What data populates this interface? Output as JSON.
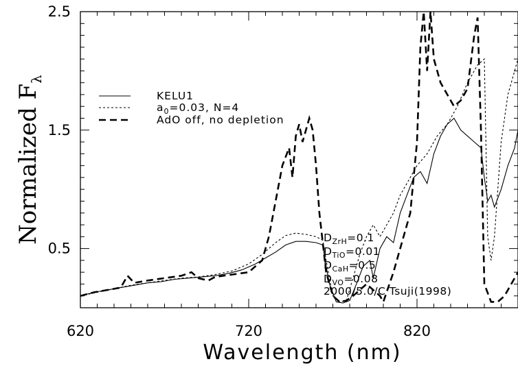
{
  "chart_data": {
    "type": "line",
    "title": "",
    "xlabel": "Wavelength  (nm)",
    "ylabel_main": "Normalized F",
    "ylabel_sub": "λ",
    "xlim": [
      620,
      880
    ],
    "ylim": [
      0,
      2.5
    ],
    "x_ticks": [
      620,
      720,
      820
    ],
    "y_ticks": [
      0.5,
      1.5,
      2.5
    ],
    "x_tick_labels": [
      "620",
      "720",
      "820"
    ],
    "y_tick_labels": [
      "0.5",
      "1.5",
      "2.5"
    ],
    "grid": false,
    "legend_position": "upper-left",
    "series": [
      {
        "name": "KELU1",
        "line_style": "solid",
        "points": [
          [
            620,
            0.1
          ],
          [
            628,
            0.13
          ],
          [
            636,
            0.15
          ],
          [
            644,
            0.17
          ],
          [
            652,
            0.19
          ],
          [
            660,
            0.21
          ],
          [
            668,
            0.22
          ],
          [
            676,
            0.24
          ],
          [
            684,
            0.25
          ],
          [
            692,
            0.26
          ],
          [
            700,
            0.27
          ],
          [
            708,
            0.29
          ],
          [
            716,
            0.32
          ],
          [
            724,
            0.37
          ],
          [
            730,
            0.42
          ],
          [
            736,
            0.47
          ],
          [
            742,
            0.53
          ],
          [
            748,
            0.56
          ],
          [
            754,
            0.56
          ],
          [
            760,
            0.55
          ],
          [
            764,
            0.53
          ],
          [
            766,
            0.35
          ],
          [
            768,
            0.2
          ],
          [
            772,
            0.05
          ],
          [
            776,
            0.04
          ],
          [
            780,
            0.06
          ],
          [
            784,
            0.2
          ],
          [
            788,
            0.35
          ],
          [
            792,
            0.4
          ],
          [
            794,
            0.25
          ],
          [
            798,
            0.5
          ],
          [
            802,
            0.6
          ],
          [
            806,
            0.55
          ],
          [
            810,
            0.8
          ],
          [
            814,
            0.95
          ],
          [
            818,
            1.1
          ],
          [
            822,
            1.15
          ],
          [
            826,
            1.05
          ],
          [
            830,
            1.3
          ],
          [
            834,
            1.45
          ],
          [
            838,
            1.55
          ],
          [
            842,
            1.6
          ],
          [
            846,
            1.5
          ],
          [
            850,
            1.45
          ],
          [
            854,
            1.4
          ],
          [
            858,
            1.35
          ],
          [
            860,
            1.1
          ],
          [
            862,
            0.9
          ],
          [
            864,
            0.95
          ],
          [
            866,
            0.85
          ],
          [
            870,
            1.0
          ],
          [
            874,
            1.2
          ],
          [
            878,
            1.35
          ],
          [
            880,
            1.5
          ]
        ]
      },
      {
        "name": "a0=0.03, N=4",
        "legend_label": "a",
        "legend_label_sub": "0",
        "legend_label_rest": "=0.03,  N=4",
        "line_style": "dotted",
        "points": [
          [
            620,
            0.1
          ],
          [
            630,
            0.13
          ],
          [
            640,
            0.16
          ],
          [
            650,
            0.19
          ],
          [
            660,
            0.21
          ],
          [
            670,
            0.23
          ],
          [
            680,
            0.25
          ],
          [
            690,
            0.26
          ],
          [
            700,
            0.28
          ],
          [
            710,
            0.31
          ],
          [
            720,
            0.37
          ],
          [
            728,
            0.45
          ],
          [
            736,
            0.55
          ],
          [
            742,
            0.61
          ],
          [
            748,
            0.63
          ],
          [
            754,
            0.62
          ],
          [
            760,
            0.6
          ],
          [
            764,
            0.57
          ],
          [
            766,
            0.4
          ],
          [
            770,
            0.1
          ],
          [
            774,
            0.05
          ],
          [
            778,
            0.06
          ],
          [
            782,
            0.25
          ],
          [
            786,
            0.45
          ],
          [
            790,
            0.6
          ],
          [
            794,
            0.7
          ],
          [
            798,
            0.6
          ],
          [
            802,
            0.7
          ],
          [
            806,
            0.8
          ],
          [
            810,
            0.95
          ],
          [
            816,
            1.1
          ],
          [
            820,
            1.2
          ],
          [
            826,
            1.3
          ],
          [
            832,
            1.45
          ],
          [
            838,
            1.55
          ],
          [
            844,
            1.7
          ],
          [
            850,
            1.9
          ],
          [
            856,
            2.05
          ],
          [
            860,
            2.1
          ],
          [
            862,
            0.6
          ],
          [
            864,
            0.4
          ],
          [
            866,
            0.6
          ],
          [
            870,
            1.4
          ],
          [
            874,
            1.8
          ],
          [
            878,
            2.0
          ],
          [
            880,
            2.1
          ]
        ]
      },
      {
        "name": "AdO off, no depletion",
        "line_style": "dashed",
        "points": [
          [
            620,
            0.1
          ],
          [
            628,
            0.13
          ],
          [
            636,
            0.15
          ],
          [
            644,
            0.17
          ],
          [
            648,
            0.27
          ],
          [
            652,
            0.21
          ],
          [
            660,
            0.23
          ],
          [
            670,
            0.25
          ],
          [
            680,
            0.27
          ],
          [
            686,
            0.3
          ],
          [
            690,
            0.25
          ],
          [
            696,
            0.23
          ],
          [
            700,
            0.26
          ],
          [
            710,
            0.28
          ],
          [
            720,
            0.3
          ],
          [
            728,
            0.4
          ],
          [
            732,
            0.6
          ],
          [
            736,
            0.9
          ],
          [
            740,
            1.2
          ],
          [
            744,
            1.35
          ],
          [
            746,
            1.1
          ],
          [
            748,
            1.45
          ],
          [
            750,
            1.55
          ],
          [
            752,
            1.4
          ],
          [
            754,
            1.5
          ],
          [
            756,
            1.6
          ],
          [
            758,
            1.5
          ],
          [
            760,
            1.2
          ],
          [
            762,
            0.8
          ],
          [
            766,
            0.3
          ],
          [
            770,
            0.1
          ],
          [
            774,
            0.05
          ],
          [
            778,
            0.06
          ],
          [
            782,
            0.1
          ],
          [
            786,
            0.15
          ],
          [
            790,
            0.2
          ],
          [
            794,
            0.15
          ],
          [
            798,
            0.1
          ],
          [
            800,
            0.05
          ],
          [
            806,
            0.3
          ],
          [
            812,
            0.6
          ],
          [
            816,
            0.8
          ],
          [
            820,
            1.4
          ],
          [
            822,
            2.2
          ],
          [
            824,
            2.5
          ],
          [
            826,
            2.0
          ],
          [
            828,
            2.5
          ],
          [
            830,
            2.1
          ],
          [
            834,
            1.9
          ],
          [
            838,
            1.8
          ],
          [
            842,
            1.7
          ],
          [
            846,
            1.75
          ],
          [
            850,
            1.85
          ],
          [
            854,
            2.3
          ],
          [
            856,
            2.45
          ],
          [
            858,
            1.5
          ],
          [
            860,
            0.2
          ],
          [
            864,
            0.05
          ],
          [
            868,
            0.05
          ],
          [
            872,
            0.1
          ],
          [
            876,
            0.2
          ],
          [
            880,
            0.3
          ]
        ]
      }
    ],
    "annotations": [
      {
        "main": "D",
        "sub": "ZrH",
        "rest": "=0.1"
      },
      {
        "main": "D",
        "sub": "TiO",
        "rest": "=0.01"
      },
      {
        "main": "D",
        "sub": "CaH",
        "rest": "=0.5"
      },
      {
        "main": "D",
        "sub": "VO",
        "rest": "=0.08"
      },
      {
        "main": "2000/5.0/C  Tsuji(1998)",
        "sub": "",
        "rest": ""
      }
    ]
  }
}
